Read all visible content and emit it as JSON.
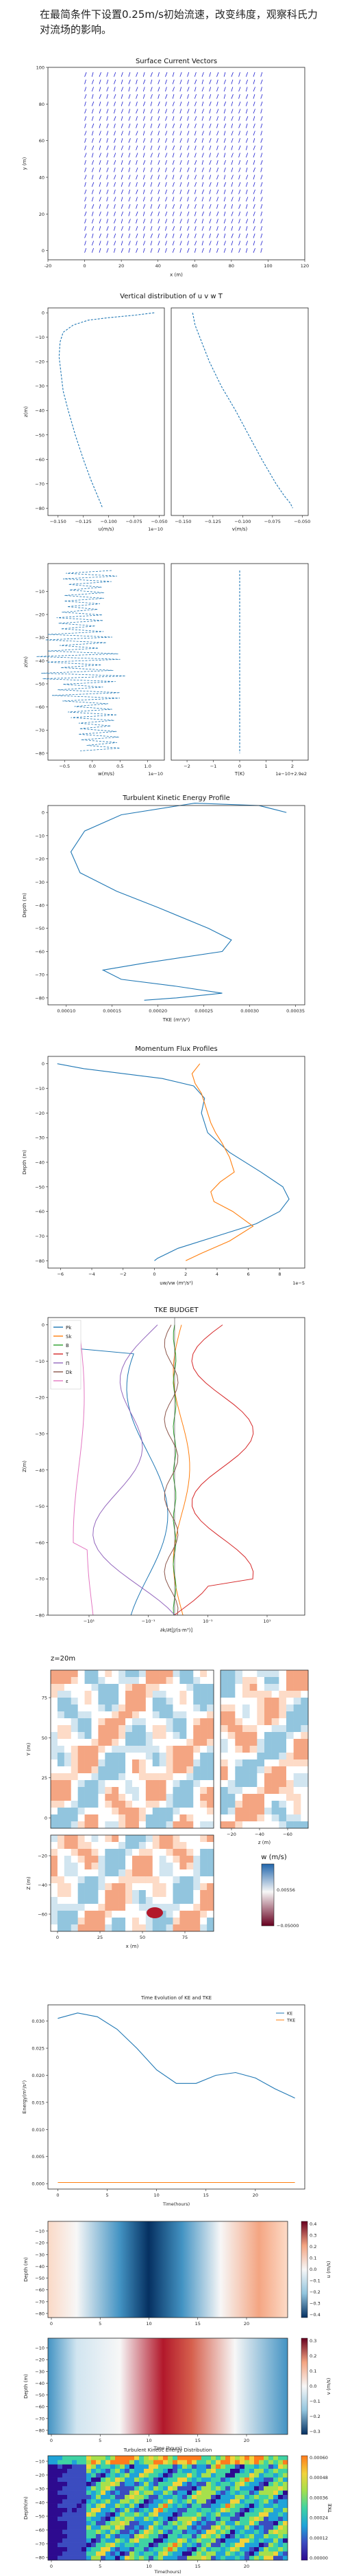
{
  "intro_text": "在最简条件下设置0.25m/s初始流速，改变纬度，观察科氏力对流场的影响。",
  "chart_data": [
    {
      "id": "vectors",
      "type": "quiver",
      "title": "Surface Current Vectors",
      "xlabel": "x (m)",
      "ylabel": "y (m)",
      "xlim": [
        -20,
        120
      ],
      "ylim": [
        -5,
        100
      ],
      "xticks": [
        "-20",
        "0",
        "20",
        "40",
        "60",
        "80",
        "100",
        "120"
      ],
      "yticks": [
        "0",
        "20",
        "40",
        "60",
        "80",
        "100"
      ],
      "grid": {
        "x0": 0,
        "x1": 96,
        "y0": 0,
        "y1": 96,
        "step": 4
      },
      "color": "#1f1fd0"
    },
    {
      "id": "uwt",
      "type": "line",
      "title": "Vertical distribution of u v w T",
      "panels": [
        {
          "name": "u",
          "xlabel": "u(m/s)",
          "offset": "1e−10",
          "xticks": [
            "−0.150",
            "−0.125",
            "−0.100",
            "−0.075",
            "−0.050"
          ],
          "xlim": [
            -0.16,
            -0.045
          ],
          "ylim": [
            -83,
            2
          ],
          "yticks": [
            "0",
            "−10",
            "−20",
            "−30",
            "−40",
            "−50",
            "−60",
            "−70",
            "−80"
          ],
          "ylabel": "z(m)"
        },
        {
          "name": "v",
          "xlabel": "v(m/s)",
          "xticks": [
            "−0.150",
            "−0.125",
            "−0.100",
            "−0.075",
            "−0.050"
          ],
          "xlim": [
            -0.16,
            -0.045
          ],
          "ylim": [
            -83,
            2
          ]
        },
        {
          "name": "w",
          "xlabel": "w(m/s)",
          "offset": "1e−10",
          "xticks": [
            "−0.5",
            "0.0",
            "0.5",
            "1.0"
          ],
          "xlim": [
            -0.8,
            1.3
          ],
          "ylim": [
            -83,
            2
          ],
          "yticks": [
            "−10",
            "−20",
            "−30",
            "−40",
            "−50",
            "−60",
            "−70",
            "−80"
          ],
          "ylabel": "z(m)"
        },
        {
          "name": "T",
          "xlabel": "T(K)",
          "offset": "1e−10+2.9e2",
          "xticks": [
            "−2",
            "−1",
            "0",
            "1",
            "2"
          ],
          "xlim": [
            -2.6,
            2.6
          ],
          "ylim": [
            -83,
            2
          ]
        }
      ],
      "u_profile": {
        "z": [
          0,
          -1,
          -2,
          -3,
          -5,
          -8,
          -12,
          -18,
          -25,
          -32,
          -40,
          -50,
          -60,
          -68,
          -74,
          -78,
          -80
        ],
        "x": [
          -0.055,
          -0.075,
          -0.1,
          -0.12,
          -0.135,
          -0.145,
          -0.148,
          -0.149,
          -0.147,
          -0.145,
          -0.14,
          -0.133,
          -0.125,
          -0.118,
          -0.112,
          -0.108,
          -0.106
        ]
      },
      "v_profile": {
        "z": [
          0,
          -5,
          -10,
          -20,
          -30,
          -40,
          -50,
          -60,
          -65,
          -70,
          -75,
          -78,
          -80
        ],
        "x": [
          -0.142,
          -0.14,
          -0.136,
          -0.128,
          -0.118,
          -0.106,
          -0.095,
          -0.084,
          -0.078,
          -0.072,
          -0.065,
          -0.06,
          -0.058
        ]
      },
      "color": "#1f77b4"
    },
    {
      "id": "tke_profile",
      "type": "line",
      "title": "Turbulent Kinetic Energy Profile",
      "xlabel": "TKE (m²/s²)",
      "ylabel": "Depth (m)",
      "xlim": [
        8e-05,
        0.00036
      ],
      "ylim": [
        -83,
        3
      ],
      "xticks": [
        "0.00010",
        "0.00015",
        "0.00020",
        "0.00025",
        "0.00030",
        "0.00035"
      ],
      "yticks": [
        "0",
        "−10",
        "−20",
        "−30",
        "−40",
        "−50",
        "−60",
        "−70",
        "−80"
      ],
      "x": [
        0.00034,
        0.00033,
        0.00031,
        0.00024,
        0.00016,
        0.00012,
        0.000105,
        0.000115,
        0.000155,
        0.0002,
        0.000255,
        0.00028,
        0.00027,
        0.000185,
        0.00014,
        0.00016,
        0.00022,
        0.00027,
        0.00022,
        0.000185
      ],
      "z": [
        0,
        1,
        3,
        4,
        -1,
        -8,
        -17,
        -26,
        -34,
        -41,
        -50,
        -55,
        -60,
        -65,
        -68,
        -72,
        -75,
        -78,
        -80,
        -81
      ],
      "color": "#1f77b4"
    },
    {
      "id": "momentum_flux",
      "type": "line",
      "title": "Momentum Flux Profiles",
      "xlabel": "uw/vw (m²/s²)",
      "ylabel": "Depth (m)",
      "offset": "1e−5",
      "xlim": [
        -6.8,
        9.6
      ],
      "ylim": [
        -83,
        3
      ],
      "xticks": [
        "−6",
        "−4",
        "−2",
        "0",
        "2",
        "4",
        "6",
        "8"
      ],
      "yticks": [
        "0",
        "−10",
        "−20",
        "−30",
        "−40",
        "−50",
        "−60",
        "−70",
        "−80"
      ],
      "series": [
        {
          "key": "uw",
          "color": "#1f77b4",
          "x": [
            -6.2,
            -4.5,
            -2,
            0.5,
            2.5,
            3.2,
            3.0,
            3.4,
            4.8,
            6.8,
            8.2,
            8.6,
            8.0,
            6.5,
            4.0,
            1.5,
            0.2,
            0.0
          ],
          "z": [
            0,
            -2,
            -4,
            -6,
            -9,
            -14,
            -20,
            -28,
            -36,
            -44,
            -50,
            -55,
            -60,
            -65,
            -70,
            -75,
            -79,
            -80
          ]
        },
        {
          "key": "vw",
          "color": "#ff7f0e",
          "x": [
            2.9,
            2.4,
            2.6,
            3.0,
            3.2,
            3.4,
            3.6,
            3.9,
            4.3,
            4.8,
            5.1,
            4.2,
            3.6,
            3.8,
            5.0,
            6.3,
            4.8,
            3.0,
            2.0
          ],
          "z": [
            0,
            -4,
            -8,
            -12,
            -16,
            -20,
            -24,
            -28,
            -32,
            -38,
            -44,
            -48,
            -52,
            -56,
            -60,
            -66,
            -72,
            -77,
            -80
          ]
        }
      ]
    },
    {
      "id": "tke_budget",
      "type": "line",
      "title": "TKE BUDGET",
      "xlabel": "∂k/∂t[J/(s·m³)]",
      "ylabel": "Z(m)",
      "ylim": [
        -80,
        2
      ],
      "xticks": [
        "−10¹",
        "−10⁻¹",
        "10⁻¹",
        "10¹"
      ],
      "yticks": [
        "0",
        "−10",
        "−20",
        "−30",
        "−40",
        "−50",
        "−60",
        "−70",
        "−80"
      ],
      "legend_position": "top-left",
      "series": [
        {
          "name": "Pk",
          "color": "#1f77b4"
        },
        {
          "name": "Sk",
          "color": "#ff7f0e"
        },
        {
          "name": "B",
          "color": "#2ca02c"
        },
        {
          "name": "T",
          "color": "#d62728"
        },
        {
          "name": "Π",
          "color": "#9467bd"
        },
        {
          "name": "Dk",
          "color": "#8c564b"
        },
        {
          "name": "ε",
          "color": "#e377c2"
        }
      ]
    },
    {
      "id": "w_slices",
      "type": "heatmap",
      "title": "z=20m",
      "colorbar_title": "w (m/s)",
      "colorbar_ticks": [
        "0.00556",
        "−0.05000"
      ],
      "main": {
        "ylabel": "Y (m)",
        "yticks": [
          "75",
          "50",
          "25",
          "0"
        ]
      },
      "side": {
        "xlabel": "z (m)",
        "xticks": [
          "−20",
          "−40",
          "−60"
        ]
      },
      "bottom": {
        "xlabel": "x (m)",
        "ylabel": "Z (m)",
        "xticks": [
          "0",
          "25",
          "50",
          "75"
        ],
        "yticks": [
          "−20",
          "−40",
          "−60"
        ]
      }
    },
    {
      "id": "time_evolution",
      "type": "line",
      "title": "Time Evolution of KE and TKE",
      "xlabel": "Time(hours)",
      "ylabel": "Energy(m²/s²)",
      "yticks": [
        "0.030",
        "0.025",
        "0.020",
        "0.015",
        "0.010",
        "0.005",
        "0.000"
      ],
      "xticks": [
        "0",
        "5",
        "10",
        "15",
        "20"
      ],
      "xlim": [
        -1,
        25
      ],
      "ylim": [
        -0.001,
        0.033
      ],
      "legend_position": "top-right",
      "series": [
        {
          "name": "KE",
          "color": "#1f77b4",
          "x": [
            0,
            2,
            4,
            6,
            8,
            10,
            12,
            14,
            16,
            18,
            20,
            22,
            24
          ],
          "y": [
            0.0305,
            0.0315,
            0.0308,
            0.0285,
            0.025,
            0.021,
            0.0185,
            0.0185,
            0.02,
            0.0205,
            0.0195,
            0.0175,
            0.0158
          ]
        },
        {
          "name": "TKE",
          "color": "#ff7f0e",
          "x": [
            0,
            24
          ],
          "y": [
            0.0002,
            0.0002
          ]
        }
      ]
    },
    {
      "id": "u_hovmoller",
      "type": "heatmap",
      "colorbar_label": "u (m/s)",
      "ylabel": "Depth (m)",
      "colorbar_ticks": [
        "0.4",
        "0.3",
        "0.2",
        "0.1",
        "0.0",
        "−0.1",
        "−0.2",
        "−0.3",
        "−0.4"
      ],
      "yticks": [
        "−10",
        "−20",
        "−30",
        "−40",
        "−50",
        "−60",
        "−70",
        "−80"
      ],
      "xticks": [
        "0",
        "5",
        "10",
        "15",
        "20"
      ]
    },
    {
      "id": "v_hovmoller",
      "type": "heatmap",
      "colorbar_label": "v (m/s)",
      "xlabel": "Time (hours)",
      "ylabel": "Depth (m)",
      "colorbar_ticks": [
        "0.3",
        "0.2",
        "0.1",
        "0.0",
        "−0.1",
        "−0.2",
        "−0.3"
      ],
      "yticks": [
        "−10",
        "−20",
        "−30",
        "−40",
        "−50",
        "−60",
        "−70",
        "−80"
      ],
      "xticks": [
        "0",
        "5",
        "10",
        "15",
        "20"
      ]
    },
    {
      "id": "tke_distribution",
      "type": "heatmap",
      "title": "Turbulent Kinetic Energy Distribution",
      "xlabel": "Time(hours)",
      "ylabel": "Depth(m)",
      "colorbar_label": "TKE",
      "colorbar_ticks": [
        "0.00060",
        "0.00048",
        "0.00036",
        "0.00024",
        "0.00012",
        "0.00000"
      ],
      "yticks": [
        "−10",
        "−20",
        "−30",
        "−40",
        "−50",
        "−60",
        "−70",
        "−80"
      ],
      "xticks": [
        "0",
        "5",
        "10",
        "15",
        "20"
      ]
    }
  ]
}
